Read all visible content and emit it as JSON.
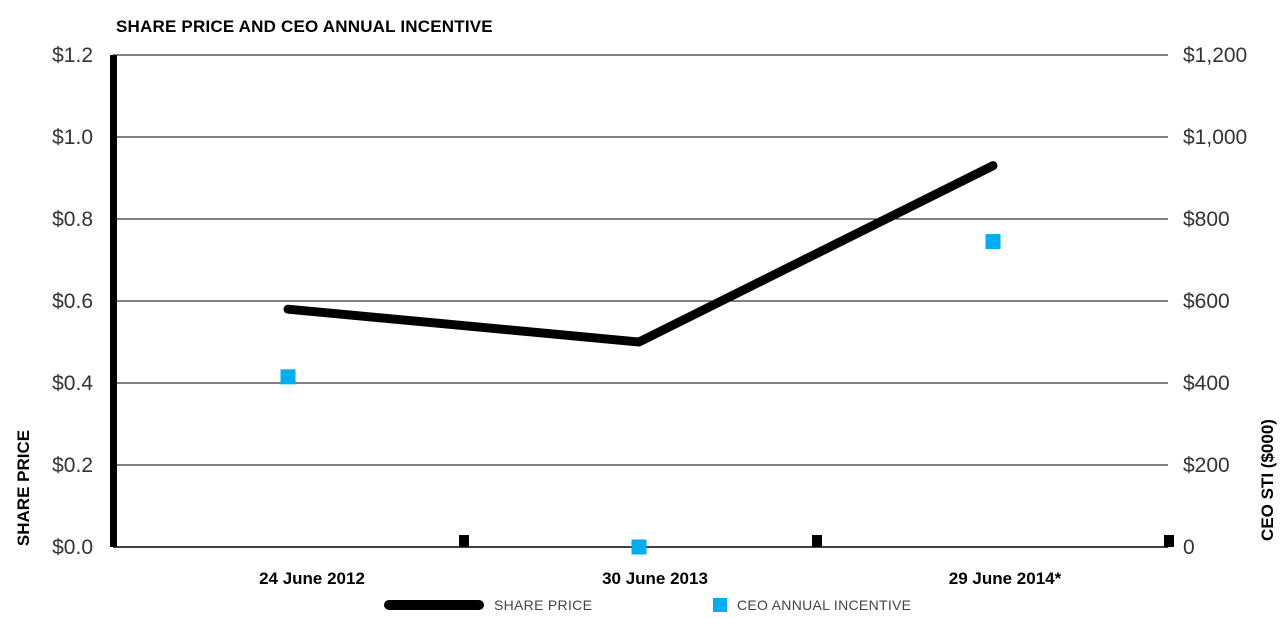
{
  "chart_data": {
    "type": "line",
    "title": "SHARE PRICE AND CEO ANNUAL INCENTIVE",
    "categories": [
      "24 June 2012",
      "30 June 2013",
      "29 June 2014*"
    ],
    "y_left_label": "SHARE PRICE",
    "y_right_label": "CEO STI ($000)",
    "y_left_ticks": [
      "$0.0",
      "$0.2",
      "$0.4",
      "$0.6",
      "$0.8",
      "$1.0",
      "$1.2"
    ],
    "y_right_ticks": [
      "0",
      "$200",
      "$400",
      "$600",
      "$800",
      "$1,000",
      "$1,200"
    ],
    "y_left_range": [
      0,
      1.2
    ],
    "y_right_range": [
      0,
      1200
    ],
    "grid": true,
    "legend_placement": "bottom",
    "series": [
      {
        "name": "SHARE PRICE",
        "type": "line",
        "axis": "left",
        "color": "#000000",
        "values": [
          0.58,
          0.5,
          0.93
        ]
      },
      {
        "name": "CEO ANNUAL INCENTIVE",
        "type": "scatter",
        "axis": "right",
        "color": "#00aeef",
        "values": [
          415,
          0,
          745
        ]
      }
    ]
  }
}
